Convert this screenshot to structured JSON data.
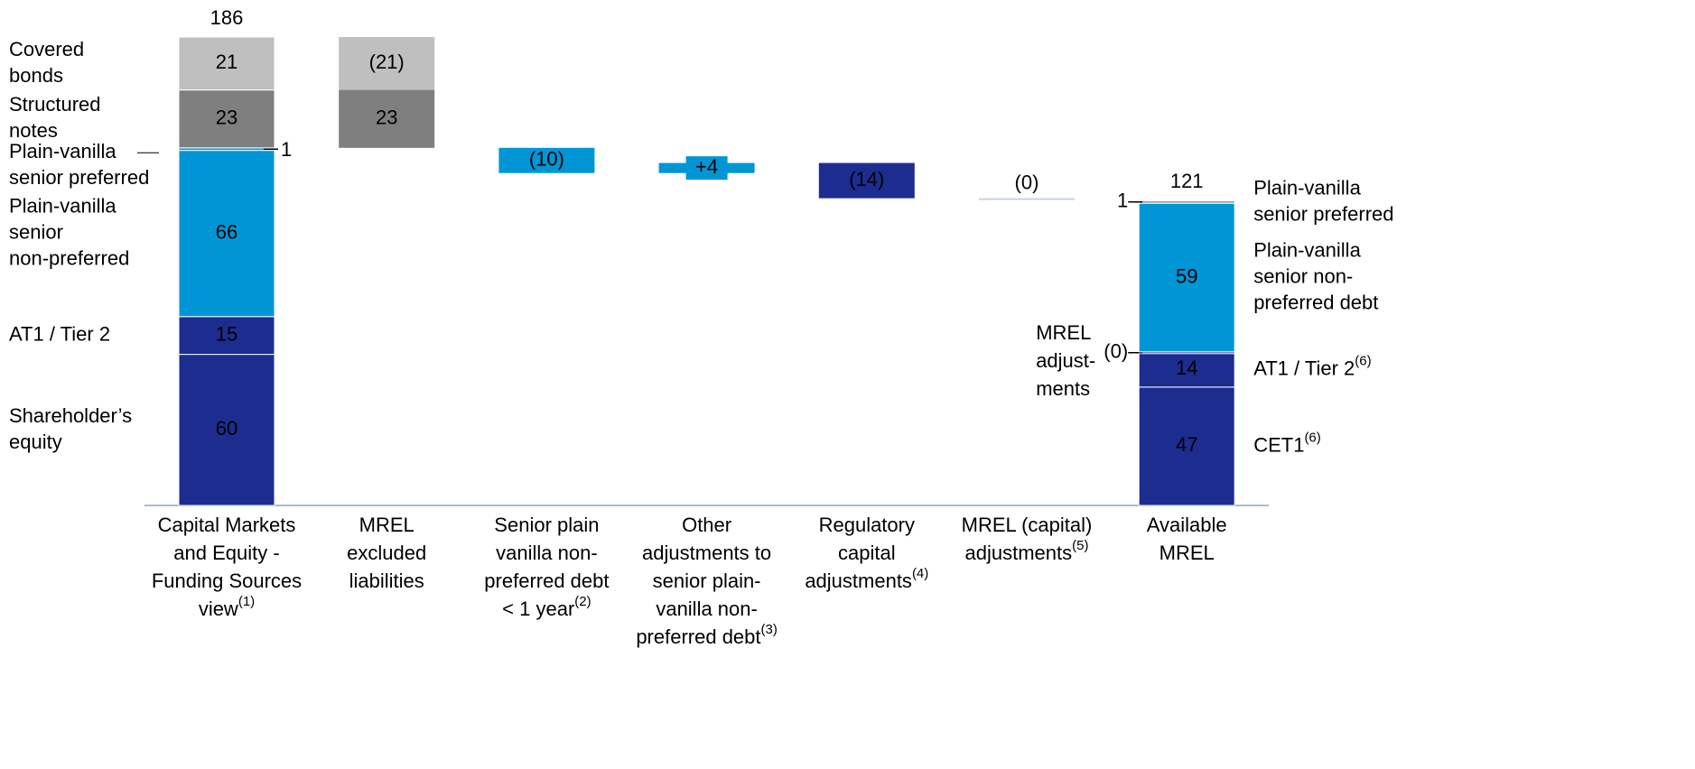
{
  "chart_data": {
    "type": "waterfall",
    "ylim": [
      0,
      200
    ],
    "bars": [
      {
        "category": [
          "Capital Markets",
          "and Equity -",
          "Funding Sources",
          "view"
        ],
        "note": "(1)",
        "total": 186,
        "segments": [
          {
            "name": [
              "Shareholder’s",
              "equity"
            ],
            "value": 60,
            "color": "#1c2d8f"
          },
          {
            "name": [
              "AT1 / Tier 2"
            ],
            "value": 15,
            "color": "#1c2d8f"
          },
          {
            "name": [
              "Plain-vanilla",
              "senior",
              "non-preferred"
            ],
            "value": 66,
            "color": "#0096d6"
          },
          {
            "name": [
              "Plain-vanilla",
              "senior preferred"
            ],
            "value": 1,
            "color": "#0096d6"
          },
          {
            "name": [
              "Structured",
              "notes"
            ],
            "value": 23,
            "color": "#7f7f7f"
          },
          {
            "name": [
              "Covered",
              "bonds"
            ],
            "value": 21,
            "color": "#bfbfbf"
          }
        ]
      },
      {
        "category": [
          "MREL",
          "excluded",
          "liabilities"
        ],
        "segments": [
          {
            "value": -21,
            "value_label": "(21)",
            "color": "#bfbfbf"
          },
          {
            "value": -23,
            "value_label": "23",
            "color": "#7f7f7f"
          }
        ]
      },
      {
        "category": [
          "Senior plain",
          "vanilla non-",
          "preferred debt",
          "< 1 year"
        ],
        "note": "(2)",
        "segments": [
          {
            "value": -10,
            "value_label": "(10)",
            "color": "#0096d6"
          }
        ]
      },
      {
        "category": [
          "Other",
          "adjustments to",
          "senior plain-",
          "vanilla non-",
          "preferred debt"
        ],
        "note": "(3)",
        "segments": [
          {
            "value": 4,
            "value_label": "+4",
            "color": "#0096d6"
          }
        ]
      },
      {
        "category": [
          "Regulatory",
          "capital",
          "adjustments"
        ],
        "note": "(4)",
        "segments": [
          {
            "value": -14,
            "value_label": "(14)",
            "color": "#1c2d8f"
          }
        ]
      },
      {
        "category": [
          "MREL (capital)",
          "adjustments"
        ],
        "note": "(5)",
        "segments": [
          {
            "value": 0,
            "value_label": "(0)",
            "color": "#c8d4e0"
          }
        ]
      },
      {
        "category": [
          "Available",
          "MREL"
        ],
        "total": 121,
        "segments": [
          {
            "name": [
              "CET1"
            ],
            "note": "(6)",
            "value": 47,
            "color": "#1c2d8f"
          },
          {
            "name": [
              "AT1 / Tier 2"
            ],
            "note": "(6)",
            "value": 14,
            "color": "#1c2d8f"
          },
          {
            "name": [
              "MREL",
              "adjust-",
              "ments"
            ],
            "value": 0,
            "value_label": "(0)",
            "color": "#1c2d8f"
          },
          {
            "name": [
              "Plain-vanilla",
              "senior non-",
              "preferred debt"
            ],
            "value": 59,
            "color": "#0096d6"
          },
          {
            "name": [
              "Plain-vanilla",
              "senior preferred"
            ],
            "value": 1,
            "color": "#a0a0a0"
          }
        ]
      }
    ]
  }
}
